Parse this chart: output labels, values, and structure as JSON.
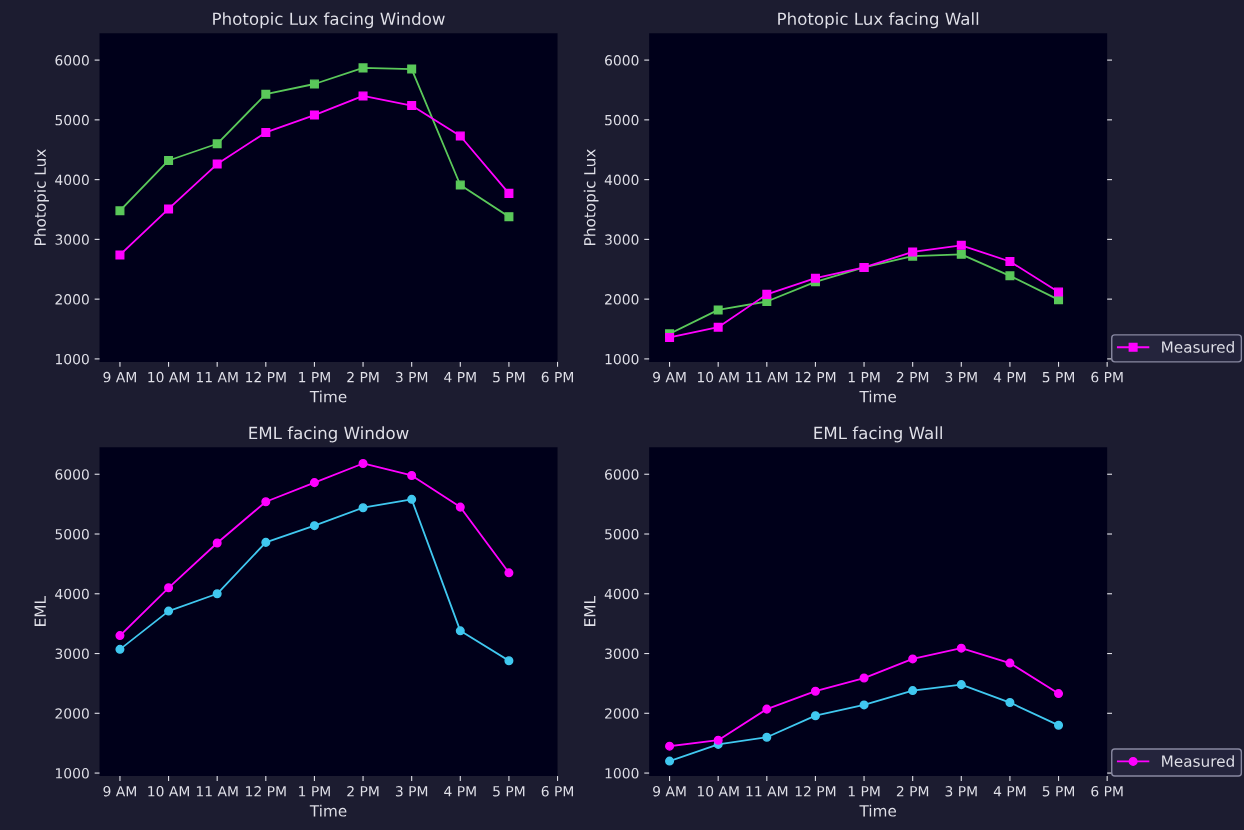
{
  "chart_data": [
    {
      "type": "line",
      "title": "Photopic Lux facing Window",
      "xlabel": "Time",
      "ylabel": "Photopic Lux",
      "categories": [
        "9 AM",
        "10 AM",
        "11 AM",
        "12 PM",
        "1 PM",
        "2 PM",
        "3 PM",
        "4 PM",
        "5 PM",
        "6 PM"
      ],
      "series": [
        {
          "color": "#5ac85a",
          "values": [
            3480,
            4320,
            4600,
            5430,
            5600,
            5870,
            5850,
            3910,
            3380,
            null
          ]
        },
        {
          "color": "#ff00ff",
          "values": [
            2740,
            3510,
            4260,
            4790,
            5080,
            5400,
            5240,
            4730,
            3770,
            null
          ]
        }
      ],
      "ylim": [
        950,
        6450
      ],
      "yticks": [
        1000,
        2000,
        3000,
        4000,
        5000,
        6000
      ],
      "marker": "square",
      "grid": false,
      "legend": false
    },
    {
      "type": "line",
      "title": "Photopic Lux facing Wall",
      "xlabel": "Time",
      "ylabel": "Photopic Lux",
      "categories": [
        "9 AM",
        "10 AM",
        "11 AM",
        "12 PM",
        "1 PM",
        "2 PM",
        "3 PM",
        "4 PM",
        "5 PM",
        "6 PM"
      ],
      "series": [
        {
          "color": "#5ac85a",
          "values": [
            1420,
            1820,
            1960,
            2290,
            2530,
            2720,
            2750,
            2390,
            1990,
            null
          ]
        },
        {
          "name": "Measured",
          "color": "#ff00ff",
          "values": [
            1360,
            1530,
            2080,
            2350,
            2530,
            2790,
            2900,
            2630,
            2120,
            null
          ]
        }
      ],
      "ylim": [
        950,
        6450
      ],
      "yticks": [
        1000,
        2000,
        3000,
        4000,
        5000,
        6000
      ],
      "marker": "square",
      "grid": false,
      "legend": "bottom right"
    },
    {
      "type": "line",
      "title": "EML facing Window",
      "xlabel": "Time",
      "ylabel": "EML",
      "categories": [
        "9 AM",
        "10 AM",
        "11 AM",
        "12 PM",
        "1 PM",
        "2 PM",
        "3 PM",
        "4 PM",
        "5 PM",
        "6 PM"
      ],
      "series": [
        {
          "color": "#40c8f0",
          "values": [
            3070,
            3710,
            4000,
            4860,
            5140,
            5440,
            5580,
            3380,
            2880,
            null
          ]
        },
        {
          "color": "#ff00ff",
          "values": [
            3300,
            4100,
            4850,
            5540,
            5860,
            6180,
            5980,
            5450,
            4350,
            null
          ]
        }
      ],
      "ylim": [
        950,
        6450
      ],
      "yticks": [
        1000,
        2000,
        3000,
        4000,
        5000,
        6000
      ],
      "marker": "circle",
      "grid": false,
      "legend": false
    },
    {
      "type": "line",
      "title": "EML facing Wall",
      "xlabel": "Time",
      "ylabel": "EML",
      "categories": [
        "9 AM",
        "10 AM",
        "11 AM",
        "12 PM",
        "1 PM",
        "2 PM",
        "3 PM",
        "4 PM",
        "5 PM",
        "6 PM"
      ],
      "series": [
        {
          "color": "#40c8f0",
          "values": [
            1200,
            1480,
            1600,
            1960,
            2140,
            2380,
            2480,
            2180,
            1800,
            null
          ]
        },
        {
          "name": "Measured",
          "color": "#ff00ff",
          "values": [
            1450,
            1550,
            2070,
            2370,
            2590,
            2910,
            3090,
            2840,
            2330,
            null
          ]
        }
      ],
      "ylim": [
        950,
        6450
      ],
      "yticks": [
        1000,
        2000,
        3000,
        4000,
        5000,
        6000
      ],
      "marker": "circle",
      "grid": false,
      "legend": "bottom right"
    }
  ]
}
